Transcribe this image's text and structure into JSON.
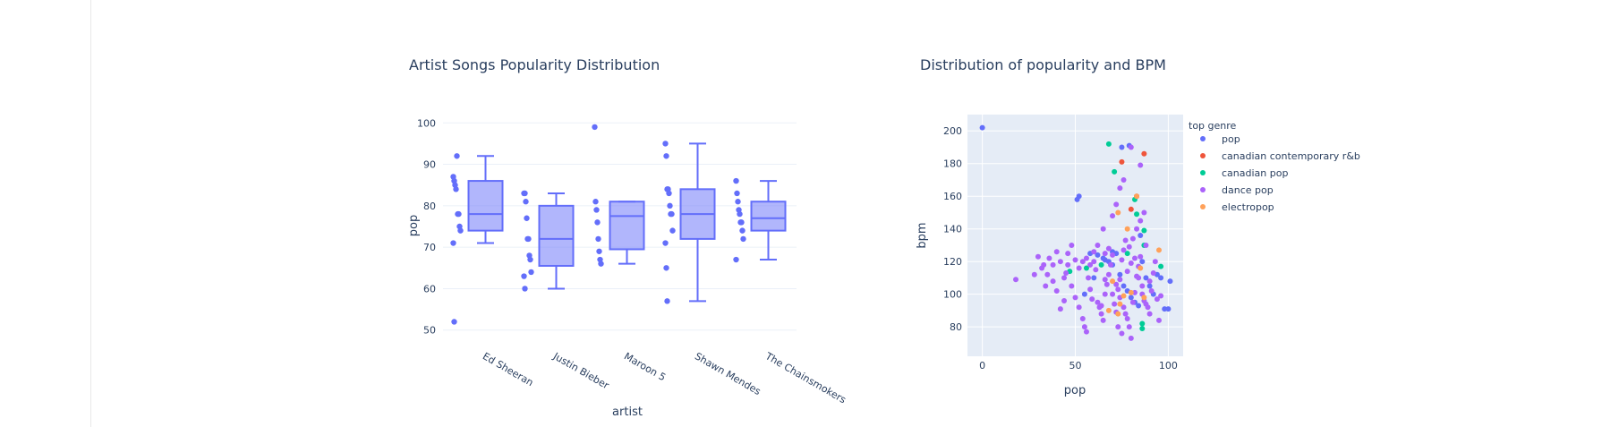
{
  "chart_data": [
    {
      "type": "box",
      "title": "Artist Songs Popularity Distribution",
      "xlabel": "artist",
      "ylabel": "pop",
      "ylim": [
        48,
        102
      ],
      "yticks": [
        50,
        60,
        70,
        80,
        90,
        100
      ],
      "grid": true,
      "color": "#636efa",
      "categories": [
        "Ed Sheeran",
        "Justin Bieber",
        "Maroon 5",
        "Shawn Mendes",
        "The Chainsmokers"
      ],
      "boxes": [
        {
          "name": "Ed Sheeran",
          "min": 71,
          "q1": 74,
          "median": 78,
          "q3": 86,
          "max": 92,
          "points": [
            87,
            86,
            85,
            84,
            92,
            78,
            78,
            75,
            74,
            71,
            52
          ]
        },
        {
          "name": "Justin Bieber",
          "min": 60,
          "q1": 65.5,
          "median": 72,
          "q3": 80,
          "max": 83,
          "points": [
            83,
            83,
            81,
            77,
            72,
            72,
            68,
            67,
            64,
            63,
            60
          ]
        },
        {
          "name": "Maroon 5",
          "min": 66,
          "q1": 69.5,
          "median": 77.5,
          "q3": 81,
          "max": 81,
          "points": [
            99,
            81,
            79,
            76,
            72,
            69,
            67,
            66
          ]
        },
        {
          "name": "Shawn Mendes",
          "min": 57,
          "q1": 72,
          "median": 78,
          "q3": 84,
          "max": 95,
          "points": [
            95,
            92,
            84,
            84,
            83,
            80,
            78,
            78,
            74,
            71,
            65,
            57
          ]
        },
        {
          "name": "The Chainsmokers",
          "min": 67,
          "q1": 74,
          "median": 77,
          "q3": 81,
          "max": 86,
          "points": [
            86,
            83,
            81,
            79,
            78,
            76,
            76,
            74,
            72,
            67
          ]
        }
      ]
    },
    {
      "type": "scatter",
      "title": "Distribution of popularity and BPM",
      "xlabel": "pop",
      "ylabel": "bpm",
      "xlim": [
        -8,
        108
      ],
      "ylim": [
        62,
        210
      ],
      "xticks": [
        0,
        50,
        100
      ],
      "yticks": [
        80,
        100,
        120,
        140,
        160,
        180,
        200
      ],
      "grid": true,
      "legend_title": "top genre",
      "legend_position": "right",
      "series": [
        {
          "name": "pop",
          "color": "#636efa",
          "points": [
            [
              0,
              202
            ],
            [
              52,
              160
            ],
            [
              51,
              158
            ],
            [
              58,
              125
            ],
            [
              62,
              124
            ],
            [
              65,
              122
            ],
            [
              68,
              120
            ],
            [
              70,
              118
            ],
            [
              72,
              125
            ],
            [
              74,
              112
            ],
            [
              76,
              105
            ],
            [
              78,
              102
            ],
            [
              80,
              98
            ],
            [
              82,
              95
            ],
            [
              84,
              93
            ],
            [
              86,
              120
            ],
            [
              88,
              110
            ],
            [
              90,
              105
            ],
            [
              92,
              100
            ],
            [
              94,
              112
            ],
            [
              96,
              110
            ],
            [
              98,
              91
            ],
            [
              100,
              91
            ],
            [
              101,
              108
            ],
            [
              70,
              126
            ],
            [
              66,
              121
            ],
            [
              60,
              110
            ],
            [
              55,
              100
            ],
            [
              75,
              190
            ],
            [
              79,
              191
            ],
            [
              85,
              136
            ]
          ]
        },
        {
          "name": "canadian contemporary r&b",
          "color": "#ef553b",
          "points": [
            [
              75,
              181
            ],
            [
              87,
              186
            ],
            [
              83,
              160
            ],
            [
              80,
              152
            ]
          ]
        },
        {
          "name": "canadian pop",
          "color": "#00cc96",
          "points": [
            [
              68,
              192
            ],
            [
              71,
              175
            ],
            [
              82,
              158
            ],
            [
              83,
              149
            ],
            [
              87,
              139
            ],
            [
              87,
              130
            ],
            [
              78,
              125
            ],
            [
              64,
              118
            ],
            [
              56,
              116
            ],
            [
              47,
              114
            ],
            [
              96,
              117
            ],
            [
              86,
              82
            ],
            [
              86,
              79
            ]
          ]
        },
        {
          "name": "dance pop",
          "color": "#ab63fa",
          "points": [
            [
              18,
              109
            ],
            [
              30,
              123
            ],
            [
              33,
              118
            ],
            [
              35,
              112
            ],
            [
              38,
              108
            ],
            [
              40,
              102
            ],
            [
              42,
              91
            ],
            [
              44,
              96
            ],
            [
              45,
              113
            ],
            [
              46,
              125
            ],
            [
              48,
              105
            ],
            [
              50,
              98
            ],
            [
              52,
              92
            ],
            [
              54,
              85
            ],
            [
              55,
              80
            ],
            [
              56,
              77
            ],
            [
              57,
              110
            ],
            [
              58,
              103
            ],
            [
              59,
              97
            ],
            [
              60,
              120
            ],
            [
              61,
              115
            ],
            [
              62,
              130
            ],
            [
              63,
              92
            ],
            [
              64,
              88
            ],
            [
              65,
              84
            ],
            [
              66,
              100
            ],
            [
              67,
              106
            ],
            [
              68,
              112
            ],
            [
              69,
              118
            ],
            [
              70,
              124
            ],
            [
              71,
              94
            ],
            [
              72,
              89
            ],
            [
              73,
              103
            ],
            [
              74,
              109
            ],
            [
              75,
              121
            ],
            [
              76,
              127
            ],
            [
              77,
              133
            ],
            [
              78,
              85
            ],
            [
              79,
              80
            ],
            [
              80,
              73
            ],
            [
              81,
              95
            ],
            [
              82,
              101
            ],
            [
              83,
              111
            ],
            [
              84,
              117
            ],
            [
              85,
              123
            ],
            [
              86,
              105
            ],
            [
              87,
              96
            ],
            [
              88,
              130
            ],
            [
              89,
              92
            ],
            [
              90,
              88
            ],
            [
              91,
              102
            ],
            [
              92,
              113
            ],
            [
              93,
              120
            ],
            [
              94,
              97
            ],
            [
              95,
              84
            ],
            [
              96,
              99
            ],
            [
              65,
              140
            ],
            [
              70,
              148
            ],
            [
              72,
              155
            ],
            [
              74,
              165
            ],
            [
              76,
              170
            ],
            [
              85,
              179
            ],
            [
              66,
              125
            ],
            [
              68,
              128
            ],
            [
              60,
              126
            ],
            [
              58,
              118
            ],
            [
              56,
              122
            ],
            [
              54,
              120
            ],
            [
              52,
              116
            ],
            [
              50,
              121
            ],
            [
              48,
              130
            ],
            [
              46,
              118
            ],
            [
              44,
              110
            ],
            [
              36,
              122
            ],
            [
              32,
              116
            ],
            [
              42,
              120
            ],
            [
              28,
              112
            ],
            [
              40,
              126
            ],
            [
              38,
              118
            ],
            [
              34,
              105
            ],
            [
              62,
              95
            ],
            [
              64,
              93
            ],
            [
              66,
              109
            ],
            [
              70,
              100
            ],
            [
              72,
              106
            ],
            [
              74,
              98
            ],
            [
              76,
              92
            ],
            [
              78,
              114
            ],
            [
              80,
              119
            ],
            [
              82,
              122
            ],
            [
              84,
              110
            ],
            [
              86,
              100
            ],
            [
              88,
              94
            ],
            [
              90,
              108
            ],
            [
              73,
              80
            ],
            [
              75,
              76
            ],
            [
              77,
              88
            ],
            [
              79,
              129
            ],
            [
              81,
              134
            ],
            [
              83,
              140
            ],
            [
              85,
              145
            ],
            [
              87,
              150
            ],
            [
              80,
              190
            ]
          ]
        },
        {
          "name": "electropop",
          "color": "#ffa15a",
          "points": [
            [
              73,
              150
            ],
            [
              78,
              140
            ],
            [
              83,
              160
            ],
            [
              95,
              127
            ],
            [
              85,
              116
            ],
            [
              80,
              101
            ],
            [
              76,
              99
            ],
            [
              74,
              94
            ],
            [
              70,
              108
            ],
            [
              68,
              90
            ],
            [
              73,
              88
            ],
            [
              87,
              98
            ]
          ]
        }
      ]
    }
  ]
}
